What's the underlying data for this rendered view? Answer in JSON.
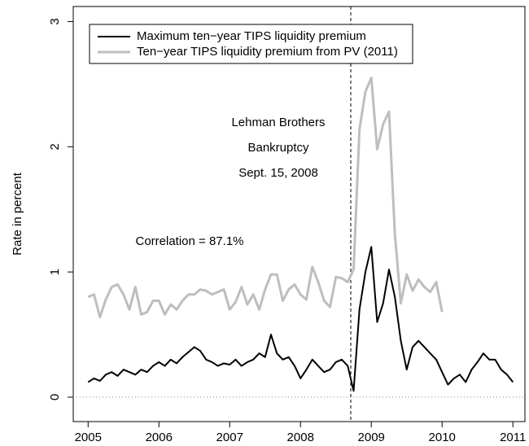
{
  "chart_data": {
    "type": "line",
    "y_label": "Rate in percent",
    "xlim": [
      2004.79,
      2011.17
    ],
    "ylim": [
      -0.195,
      3.12
    ],
    "xticks": [
      2005,
      2006,
      2007,
      2008,
      2009,
      2010,
      2011
    ],
    "yticks": [
      0,
      1,
      2,
      3
    ],
    "legend": "top-left",
    "event_x": 2008.71,
    "hline": 0,
    "annotations": [
      "Lehman Brothers",
      "Bankruptcy",
      "Sept. 15, 2008",
      "Correlation = 87.1%"
    ],
    "series": [
      {
        "name": "Maximum ten−year TIPS liquidity premium",
        "color": "#000000",
        "x": [
          2005,
          2005.083,
          2005.167,
          2005.25,
          2005.333,
          2005.417,
          2005.5,
          2005.583,
          2005.667,
          2005.75,
          2005.833,
          2005.917,
          2006,
          2006.083,
          2006.167,
          2006.25,
          2006.333,
          2006.417,
          2006.5,
          2006.583,
          2006.667,
          2006.75,
          2006.833,
          2006.917,
          2007,
          2007.083,
          2007.167,
          2007.25,
          2007.333,
          2007.417,
          2007.5,
          2007.583,
          2007.667,
          2007.75,
          2007.833,
          2007.917,
          2008,
          2008.083,
          2008.167,
          2008.25,
          2008.333,
          2008.417,
          2008.5,
          2008.583,
          2008.667,
          2008.75,
          2008.833,
          2008.917,
          2009,
          2009.083,
          2009.167,
          2009.25,
          2009.333,
          2009.417,
          2009.5,
          2009.583,
          2009.667,
          2009.75,
          2009.833,
          2009.917,
          2010,
          2010.083,
          2010.167,
          2010.25,
          2010.333,
          2010.417,
          2010.5,
          2010.583,
          2010.667,
          2010.75,
          2010.833,
          2010.917,
          2011
        ],
        "values": [
          0.12,
          0.15,
          0.13,
          0.18,
          0.2,
          0.17,
          0.22,
          0.2,
          0.18,
          0.22,
          0.2,
          0.25,
          0.28,
          0.25,
          0.3,
          0.27,
          0.32,
          0.36,
          0.4,
          0.37,
          0.3,
          0.28,
          0.25,
          0.27,
          0.26,
          0.3,
          0.25,
          0.28,
          0.3,
          0.35,
          0.32,
          0.5,
          0.35,
          0.3,
          0.32,
          0.25,
          0.15,
          0.22,
          0.3,
          0.25,
          0.2,
          0.22,
          0.28,
          0.3,
          0.25,
          0.05,
          0.7,
          1.0,
          1.2,
          0.6,
          0.75,
          1.02,
          0.8,
          0.45,
          0.22,
          0.4,
          0.45,
          0.4,
          0.35,
          0.3,
          0.2,
          0.1,
          0.15,
          0.18,
          0.12,
          0.22,
          0.28,
          0.35,
          0.3,
          0.3,
          0.22,
          0.18,
          0.12
        ]
      },
      {
        "name": "Ten−year TIPS liquidity premium from PV (2011)",
        "color": "#bebebe",
        "x": [
          2005,
          2005.083,
          2005.167,
          2005.25,
          2005.333,
          2005.417,
          2005.5,
          2005.583,
          2005.667,
          2005.75,
          2005.833,
          2005.917,
          2006,
          2006.083,
          2006.167,
          2006.25,
          2006.333,
          2006.417,
          2006.5,
          2006.583,
          2006.667,
          2006.75,
          2006.833,
          2006.917,
          2007,
          2007.083,
          2007.167,
          2007.25,
          2007.333,
          2007.417,
          2007.5,
          2007.583,
          2007.667,
          2007.75,
          2007.833,
          2007.917,
          2008,
          2008.083,
          2008.167,
          2008.25,
          2008.333,
          2008.417,
          2008.5,
          2008.583,
          2008.667,
          2008.75,
          2008.833,
          2008.917,
          2009,
          2009.083,
          2009.167,
          2009.25,
          2009.333,
          2009.417,
          2009.5,
          2009.583,
          2009.667,
          2009.75,
          2009.833,
          2009.917,
          2010
        ],
        "values": [
          0.8,
          0.82,
          0.64,
          0.78,
          0.88,
          0.9,
          0.82,
          0.7,
          0.88,
          0.66,
          0.68,
          0.77,
          0.77,
          0.66,
          0.74,
          0.7,
          0.77,
          0.82,
          0.82,
          0.86,
          0.85,
          0.82,
          0.84,
          0.86,
          0.7,
          0.76,
          0.88,
          0.74,
          0.82,
          0.7,
          0.86,
          0.98,
          0.98,
          0.77,
          0.86,
          0.9,
          0.82,
          0.78,
          1.04,
          0.92,
          0.77,
          0.72,
          0.96,
          0.95,
          0.92,
          1.02,
          2.14,
          2.44,
          2.55,
          1.98,
          2.18,
          2.28,
          1.3,
          0.75,
          0.98,
          0.85,
          0.94,
          0.88,
          0.84,
          0.92,
          0.68
        ]
      }
    ]
  }
}
